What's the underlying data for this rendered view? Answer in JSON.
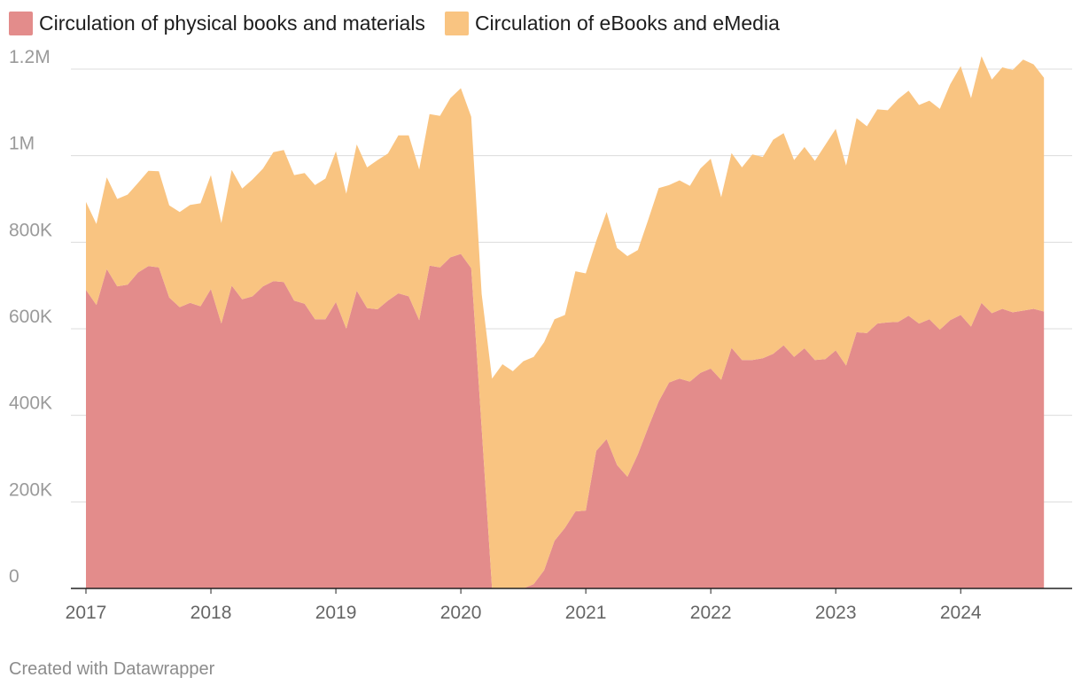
{
  "chart_data": {
    "type": "area",
    "stacked": true,
    "title": "",
    "xlabel": "",
    "ylabel": "",
    "ylim": [
      0,
      1200000
    ],
    "xlim": [
      2017,
      2024.75
    ],
    "grid": true,
    "legend_position": "top-left",
    "y_ticks": [
      {
        "value": 0,
        "label": "0"
      },
      {
        "value": 200000,
        "label": "200K"
      },
      {
        "value": 400000,
        "label": "400K"
      },
      {
        "value": 600000,
        "label": "600K"
      },
      {
        "value": 800000,
        "label": "800K"
      },
      {
        "value": 1000000,
        "label": "1M"
      },
      {
        "value": 1200000,
        "label": "1.2M"
      }
    ],
    "x_ticks": [
      {
        "value": 2017,
        "label": "2017"
      },
      {
        "value": 2018,
        "label": "2018"
      },
      {
        "value": 2019,
        "label": "2019"
      },
      {
        "value": 2020,
        "label": "2020"
      },
      {
        "value": 2021,
        "label": "2021"
      },
      {
        "value": 2022,
        "label": "2022"
      },
      {
        "value": 2023,
        "label": "2023"
      },
      {
        "value": 2024,
        "label": "2024"
      }
    ],
    "start": 2017,
    "step": 0.08333,
    "series": [
      {
        "name": "Circulation of physical books and materials",
        "color": "#e38c8b",
        "values": [
          690000,
          655000,
          738000,
          698000,
          702000,
          730000,
          745000,
          742000,
          672000,
          650000,
          660000,
          652000,
          692000,
          612000,
          700000,
          668000,
          675000,
          698000,
          710000,
          708000,
          665000,
          658000,
          622000,
          622000,
          662000,
          600000,
          688000,
          648000,
          645000,
          665000,
          682000,
          675000,
          620000,
          746000,
          742000,
          765000,
          773000,
          740000,
          370000,
          0,
          0,
          0,
          0,
          10000,
          42000,
          110000,
          140000,
          178000,
          180000,
          318000,
          345000,
          285000,
          258000,
          310000,
          372000,
          432000,
          476000,
          485000,
          478000,
          498000,
          508000,
          482000,
          556000,
          528000,
          528000,
          532000,
          542000,
          562000,
          535000,
          555000,
          528000,
          530000,
          550000,
          515000,
          592000,
          590000,
          612000,
          615000,
          616000,
          630000,
          612000,
          622000,
          598000,
          620000,
          632000,
          605000,
          660000,
          636000,
          646000,
          638000,
          642000,
          646000,
          640000
        ]
      },
      {
        "name": "Circulation of eBooks and eMedia",
        "color": "#f9c481",
        "values": [
          203000,
          187000,
          212000,
          202000,
          208000,
          207000,
          220000,
          222000,
          213000,
          220000,
          226000,
          238000,
          263000,
          232000,
          267000,
          256000,
          270000,
          272000,
          298000,
          305000,
          290000,
          302000,
          310000,
          325000,
          348000,
          312000,
          338000,
          325000,
          345000,
          340000,
          365000,
          372000,
          348000,
          350000,
          350000,
          368000,
          383000,
          350000,
          310000,
          485000,
          518000,
          502000,
          525000,
          525000,
          527000,
          512000,
          492000,
          555000,
          548000,
          485000,
          525000,
          502000,
          510000,
          472000,
          480000,
          493000,
          456000,
          458000,
          452000,
          472000,
          485000,
          422000,
          450000,
          445000,
          475000,
          465000,
          495000,
          490000,
          455000,
          465000,
          460000,
          495000,
          512000,
          462000,
          495000,
          478000,
          495000,
          490000,
          515000,
          520000,
          505000,
          505000,
          510000,
          545000,
          575000,
          528000,
          570000,
          540000,
          558000,
          560000,
          580000,
          565000,
          540000
        ]
      }
    ]
  },
  "footer": {
    "text": "Created with Datawrapper"
  }
}
